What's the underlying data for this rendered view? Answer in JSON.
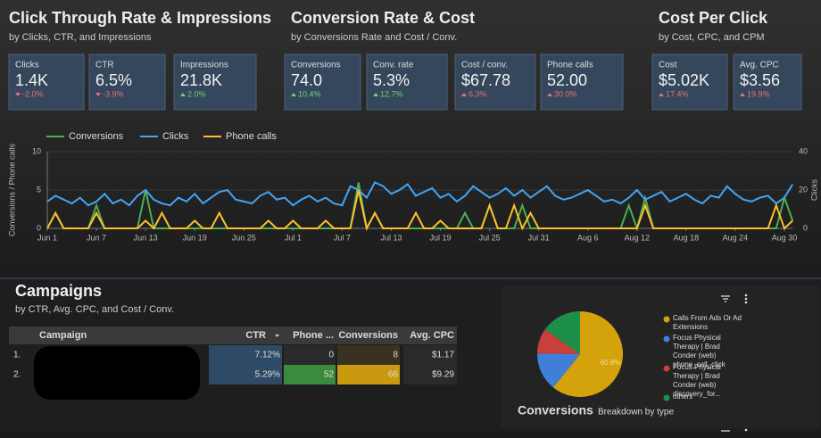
{
  "kpi_sections": [
    {
      "title": "Click Through Rate & Impressions",
      "subtitle": "by Clicks, CTR, and Impressions",
      "cards": [
        {
          "label": "Clicks",
          "value": "1.4K",
          "delta": "-2.0%",
          "delta_color": "#e8707a"
        },
        {
          "label": "CTR",
          "value": "6.5%",
          "delta": "-3.9%",
          "delta_color": "#e8707a"
        },
        {
          "label": "Impressions",
          "value": "21.8K",
          "delta": "2.0%",
          "delta_color": "#6fcf7a"
        }
      ]
    },
    {
      "title": "Conversion Rate & Cost",
      "subtitle": "by Conversions Rate and Cost / Conv.",
      "cards": [
        {
          "label": "Conversions",
          "value": "74.0",
          "delta": "10.4%",
          "delta_color": "#6fcf7a"
        },
        {
          "label": "Conv. rate",
          "value": "5.3%",
          "delta": "12.7%",
          "delta_color": "#6fcf7a"
        },
        {
          "label": "Cost / conv.",
          "value": "$67.78",
          "delta": "6.3%",
          "delta_color": "#e8707a"
        },
        {
          "label": "Phone calls",
          "value": "52.00",
          "delta": "30.0%",
          "delta_color": "#e8707a"
        }
      ]
    },
    {
      "title": "Cost Per Click",
      "subtitle": "by Cost, CPC, and CPM",
      "cards": [
        {
          "label": "Cost",
          "value": "$5.02K",
          "delta": "17.4%",
          "delta_color": "#e8707a"
        },
        {
          "label": "Avg. CPC",
          "value": "$3.56",
          "delta": "19.9%",
          "delta_color": "#e8707a"
        }
      ]
    }
  ],
  "chart_data": [
    {
      "type": "line",
      "y_label": "Conversions / Phone calls",
      "y2_label": "Clicks",
      "x": [
        "Jun 1",
        null,
        null,
        null,
        null,
        null,
        "Jun 7",
        null,
        null,
        null,
        null,
        null,
        "Jun 13",
        null,
        null,
        null,
        null,
        null,
        "Jun 19",
        null,
        null,
        null,
        null,
        null,
        "Jun 25",
        null,
        null,
        null,
        null,
        null,
        "Jul 1",
        null,
        null,
        null,
        null,
        null,
        "Jul 7",
        null,
        null,
        null,
        null,
        null,
        "Jul 13",
        null,
        null,
        null,
        null,
        null,
        "Jul 19",
        null,
        null,
        null,
        null,
        null,
        "Jul 25",
        null,
        null,
        null,
        null,
        null,
        "Jul 31",
        null,
        null,
        null,
        null,
        null,
        "Aug 6",
        null,
        null,
        null,
        null,
        null,
        "Aug 12",
        null,
        null,
        null,
        null,
        null,
        "Aug 18",
        null,
        null,
        null,
        null,
        null,
        "Aug 24",
        null,
        null,
        null,
        null,
        null,
        "Aug 30",
        null
      ],
      "ylim": [
        0,
        10
      ],
      "yticks": [
        0,
        5,
        10
      ],
      "y2lim": [
        0,
        40
      ],
      "y2ticks": [
        0,
        20,
        40
      ],
      "series": [
        {
          "name": "Conversions",
          "color": "#4caf50",
          "values": [
            0,
            2,
            0,
            0,
            0,
            0,
            3,
            0,
            0,
            0,
            0,
            0,
            5,
            0,
            0,
            0,
            0,
            0,
            0,
            0,
            0,
            0,
            0,
            0,
            0,
            0,
            0,
            0,
            0,
            0,
            0,
            0,
            0,
            0,
            0,
            0,
            0,
            0,
            6,
            0,
            2,
            0,
            0,
            0,
            0,
            0,
            0,
            0,
            0,
            0,
            0,
            2,
            0,
            0,
            3,
            0,
            0,
            0,
            3,
            0,
            0,
            0,
            0,
            0,
            0,
            0,
            0,
            0,
            0,
            0,
            0,
            3,
            0,
            4,
            0,
            0,
            0,
            0,
            0,
            0,
            0,
            0,
            0,
            0,
            0,
            0,
            0,
            0,
            0,
            0,
            4,
            1
          ]
        },
        {
          "name": "Clicks",
          "color": "#42a5f5",
          "axis": "y2",
          "values": [
            14,
            17,
            15,
            13,
            16,
            12,
            14,
            18,
            13,
            15,
            12,
            17,
            20,
            15,
            13,
            12,
            16,
            14,
            18,
            13,
            16,
            19,
            20,
            15,
            14,
            13,
            17,
            19,
            15,
            16,
            12,
            15,
            17,
            14,
            16,
            13,
            12,
            22,
            20,
            16,
            24,
            22,
            18,
            20,
            23,
            17,
            19,
            21,
            16,
            18,
            14,
            17,
            22,
            19,
            16,
            18,
            21,
            17,
            20,
            16,
            19,
            22,
            17,
            15,
            16,
            18,
            20,
            17,
            14,
            15,
            13,
            16,
            20,
            15,
            17,
            19,
            14,
            16,
            18,
            15,
            13,
            17,
            16,
            22,
            18,
            15,
            14,
            16,
            17,
            13,
            16,
            23
          ]
        },
        {
          "name": "Phone calls",
          "color": "#fbc02d",
          "values": [
            0,
            2,
            0,
            0,
            0,
            0,
            2,
            0,
            0,
            0,
            0,
            0,
            1,
            0,
            2,
            0,
            0,
            0,
            1,
            0,
            0,
            2,
            0,
            0,
            0,
            0,
            0,
            1,
            0,
            0,
            1,
            0,
            0,
            0,
            1,
            0,
            0,
            0,
            5,
            0,
            2,
            0,
            0,
            0,
            0,
            2,
            0,
            0,
            1,
            0,
            0,
            0,
            0,
            0,
            3,
            0,
            0,
            3,
            0,
            2,
            0,
            0,
            0,
            0,
            0,
            0,
            0,
            0,
            0,
            0,
            0,
            0,
            0,
            3,
            0,
            0,
            0,
            0,
            0,
            0,
            0,
            0,
            0,
            0,
            0,
            0,
            0,
            0,
            0,
            3,
            0,
            1
          ]
        }
      ]
    },
    {
      "type": "pie",
      "title": "Conversions",
      "subtitle": "Breakdown by type",
      "categories": [
        "Calls From Ads Or Ad Extensions",
        "Focus Physical Therapy | Brad Conder (web) phone_call_click",
        "Focus Physical Therapy | Brad Conder (web) discovery_for...",
        "others"
      ],
      "values": [
        60.8,
        14.5,
        9.5,
        15.2
      ],
      "value_labels": [
        "60.8%",
        null,
        null,
        null
      ],
      "colors": [
        "#d4a20a",
        "#3f7fd8",
        "#c9403a",
        "#1e8f4a"
      ]
    }
  ],
  "campaigns": {
    "title": "Campaigns",
    "subtitle": "by CTR, Avg. CPC, and Cost / Conv.",
    "header": [
      "Campaign",
      "CTR",
      "Phone ...",
      "Conversions",
      "Avg. CPC"
    ],
    "rows": [
      [
        "1.",
        "7.12%",
        "0",
        "8",
        "$1.17"
      ],
      [
        "2.",
        "5.29%",
        "52",
        "66",
        "$9.29"
      ]
    ]
  }
}
